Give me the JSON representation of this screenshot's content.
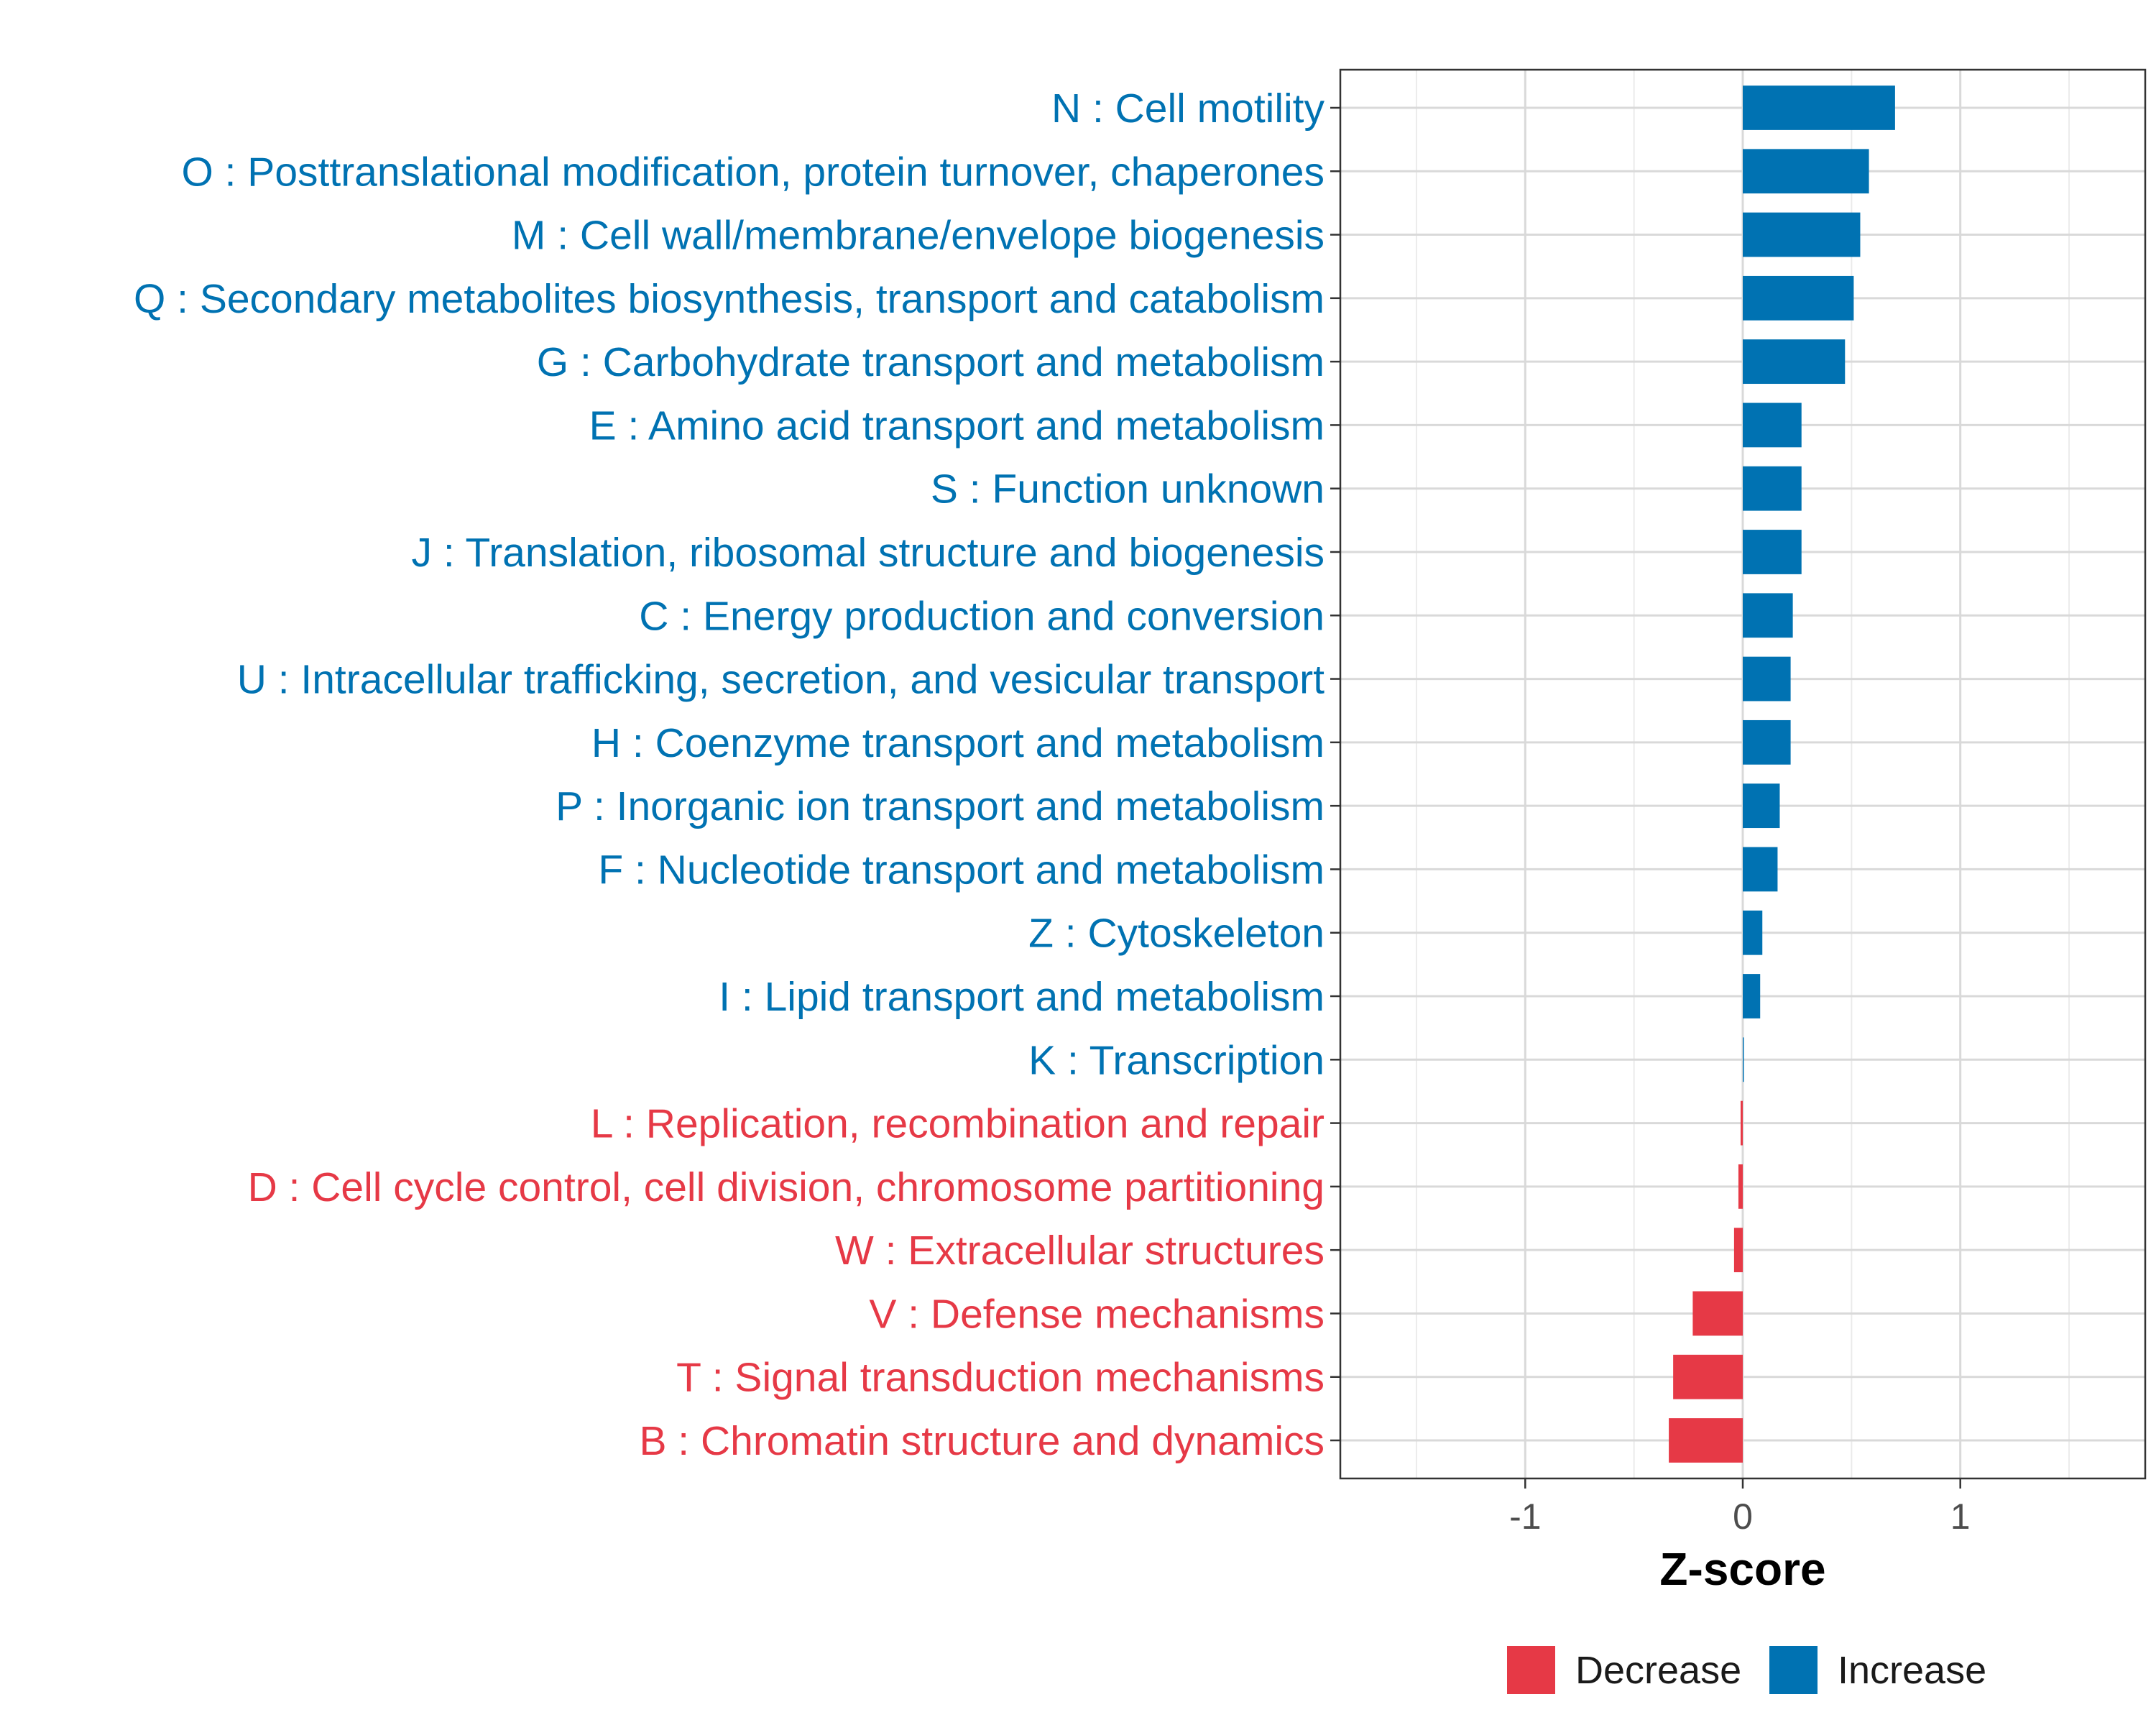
{
  "chart_data": {
    "type": "bar",
    "orientation": "horizontal",
    "xlabel": "Z-score",
    "ylabel": "",
    "xlim": [
      -1.85,
      1.85
    ],
    "x_ticks": [
      -1,
      0,
      1
    ],
    "x_tick_labels": [
      "-1",
      "0",
      "1"
    ],
    "grid": true,
    "legend_position": "bottom",
    "colors": {
      "Increase": "#0072B2",
      "Decrease": "#E63946"
    },
    "legend": [
      {
        "label": "Decrease",
        "color": "#E63946"
      },
      {
        "label": "Increase",
        "color": "#0072B2"
      }
    ],
    "categories": [
      "N : Cell motility",
      "O : Posttranslational modification, protein turnover, chaperones",
      "M : Cell wall/membrane/envelope biogenesis",
      "Q : Secondary metabolites biosynthesis, transport and catabolism",
      "G : Carbohydrate transport and metabolism",
      "E : Amino acid transport and metabolism",
      "S : Function unknown",
      "J : Translation, ribosomal structure and biogenesis",
      "C : Energy production and conversion",
      "U : Intracellular trafficking, secretion, and vesicular transport",
      "H : Coenzyme transport and metabolism",
      "P : Inorganic ion transport and metabolism",
      "F : Nucleotide transport and metabolism",
      "Z : Cytoskeleton",
      "I : Lipid transport and metabolism",
      "K : Transcription",
      "L : Replication, recombination and repair",
      "D : Cell cycle control, cell division, chromosome partitioning",
      "W : Extracellular structures",
      "V : Defense mechanisms",
      "T : Signal transduction mechanisms",
      "B : Chromatin structure and dynamics"
    ],
    "values": [
      0.7,
      0.58,
      0.54,
      0.51,
      0.47,
      0.27,
      0.27,
      0.27,
      0.23,
      0.22,
      0.22,
      0.17,
      0.16,
      0.09,
      0.08,
      0.005,
      -0.01,
      -0.02,
      -0.04,
      -0.23,
      -0.32,
      -0.34
    ],
    "groups": [
      "Increase",
      "Increase",
      "Increase",
      "Increase",
      "Increase",
      "Increase",
      "Increase",
      "Increase",
      "Increase",
      "Increase",
      "Increase",
      "Increase",
      "Increase",
      "Increase",
      "Increase",
      "Increase",
      "Decrease",
      "Decrease",
      "Decrease",
      "Decrease",
      "Decrease",
      "Decrease"
    ]
  }
}
